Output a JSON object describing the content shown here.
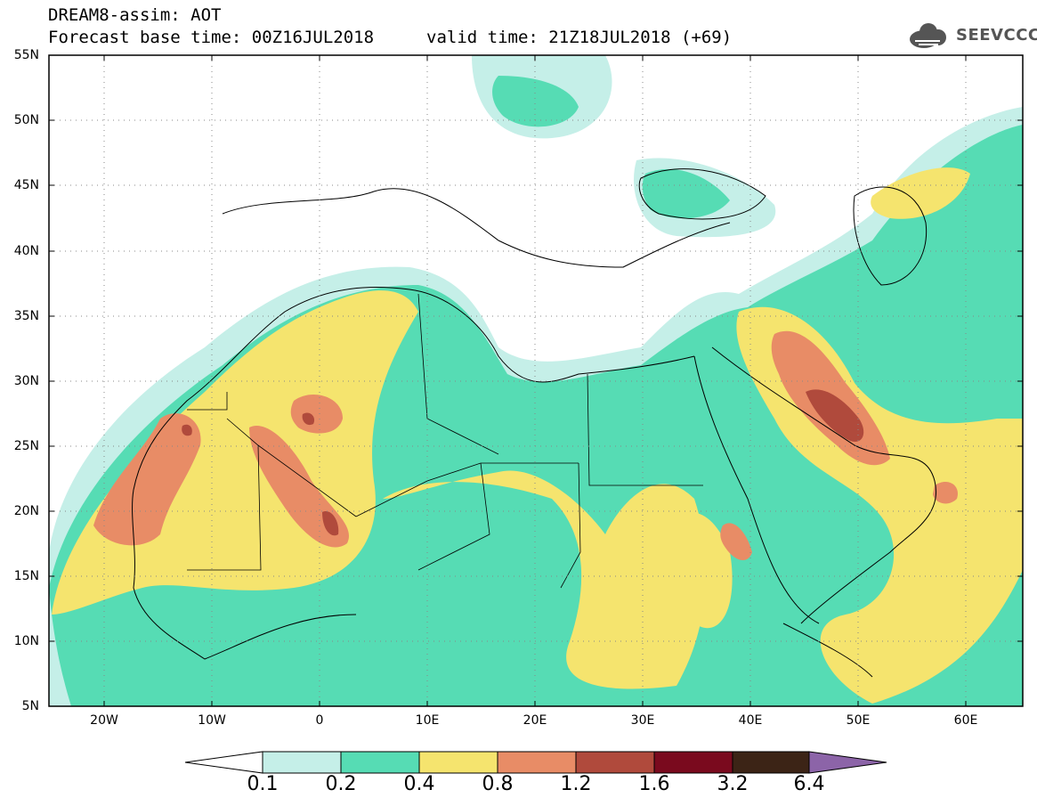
{
  "header": {
    "title": "DREAM8-assim: AOT",
    "base_time": "Forecast base time: 00Z16JUL2018",
    "valid_time": "valid time: 21Z18JUL2018 (+69)"
  },
  "logo": {
    "text": "SEEVCCC",
    "icon": "cloud-icon"
  },
  "map": {
    "latitude_labels": [
      "55N",
      "50N",
      "45N",
      "40N",
      "35N",
      "30N",
      "25N",
      "20N",
      "15N",
      "10N",
      "5N"
    ],
    "longitude_labels": [
      "20W",
      "10W",
      "0",
      "10E",
      "20E",
      "30E",
      "40E",
      "50E",
      "60E"
    ],
    "grid": "dotted"
  },
  "colorbar": {
    "labels": [
      "0.1",
      "0.2",
      "0.4",
      "0.8",
      "1.2",
      "1.6",
      "3.2",
      "6.4"
    ],
    "colors": [
      "#ffffff",
      "#c5efe8",
      "#56dcb4",
      "#f5e46e",
      "#e88c66",
      "#b04a3c",
      "#7a0a1e",
      "#3c2416",
      "#8c64a8"
    ]
  },
  "colors": {
    "aot_01_02": "#c5efe8",
    "aot_02_04": "#56dcb4",
    "aot_04_08": "#f5e46e",
    "aot_08_12": "#e88c66",
    "aot_12_16": "#b04a3c",
    "aot_16_32": "#7a0a1e"
  }
}
